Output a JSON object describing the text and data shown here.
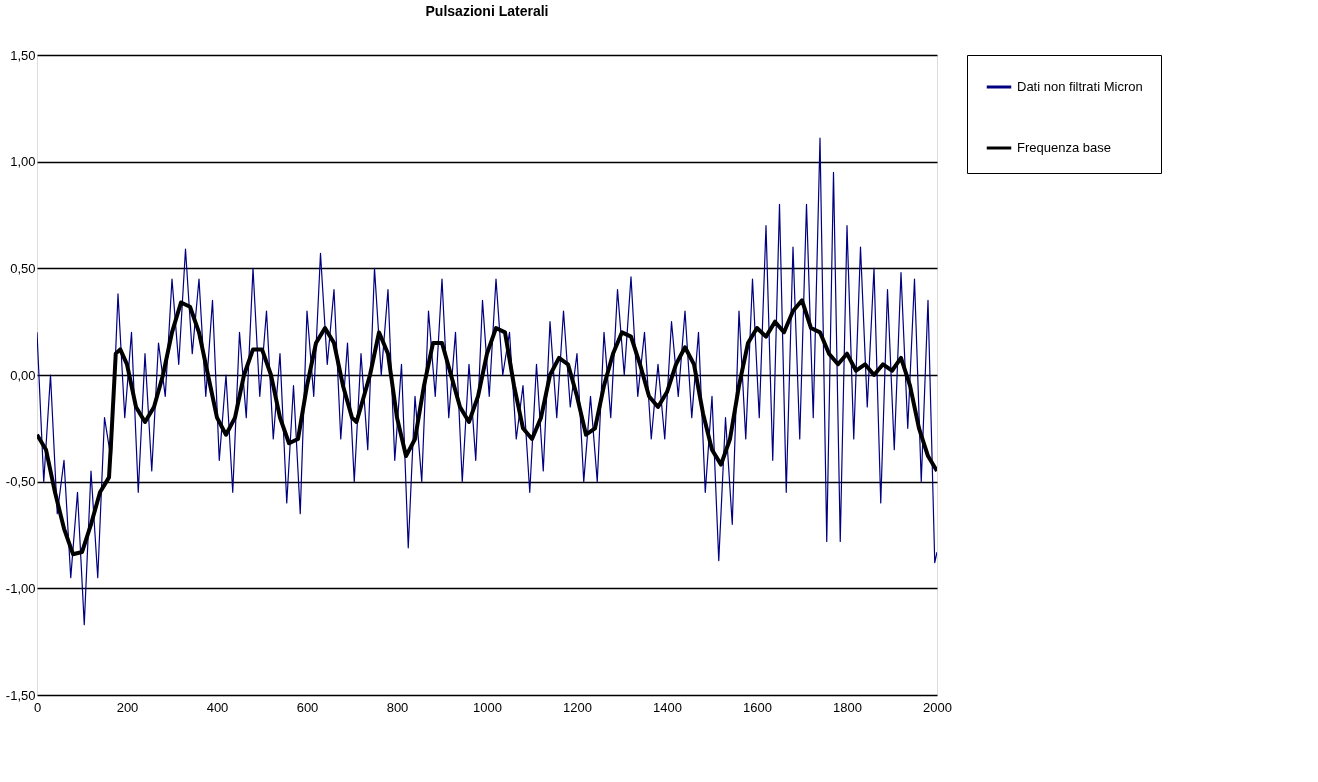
{
  "chart_data": {
    "type": "line",
    "title": "Pulsazioni Laterali",
    "xlim": [
      0,
      2000
    ],
    "xticks": [
      0,
      200,
      400,
      600,
      800,
      1000,
      1200,
      1400,
      1600,
      1800,
      2000
    ],
    "ylim": [
      -1.5,
      1.5
    ],
    "yticks": [
      {
        "value": -1.5,
        "label": "-1,50"
      },
      {
        "value": -1.0,
        "label": "-1,00"
      },
      {
        "value": -0.5,
        "label": "-0,50"
      },
      {
        "value": 0,
        "label": "0,00"
      },
      {
        "value": 0.5,
        "label": "0,50"
      },
      {
        "value": 1.0,
        "label": "1,00"
      },
      {
        "value": 1.5,
        "label": "1,50"
      }
    ],
    "grid": "y",
    "legend": "right",
    "marker": "none",
    "line_style": "solid",
    "series": [
      {
        "name": "Dati non filtrati Micron",
        "color": "#000080",
        "x": [
          0,
          15,
          30,
          45,
          60,
          75,
          90,
          105,
          120,
          135,
          150,
          165,
          180,
          195,
          210,
          225,
          240,
          255,
          270,
          285,
          300,
          315,
          330,
          345,
          360,
          375,
          390,
          405,
          420,
          435,
          450,
          465,
          480,
          495,
          510,
          525,
          540,
          555,
          570,
          585,
          600,
          615,
          630,
          645,
          660,
          675,
          690,
          705,
          720,
          735,
          750,
          765,
          780,
          795,
          810,
          825,
          840,
          855,
          870,
          885,
          900,
          915,
          930,
          945,
          960,
          975,
          990,
          1005,
          1020,
          1035,
          1050,
          1065,
          1080,
          1095,
          1110,
          1125,
          1140,
          1155,
          1170,
          1185,
          1200,
          1215,
          1230,
          1245,
          1260,
          1275,
          1290,
          1305,
          1320,
          1335,
          1350,
          1365,
          1380,
          1395,
          1410,
          1425,
          1440,
          1455,
          1470,
          1485,
          1500,
          1515,
          1530,
          1545,
          1560,
          1575,
          1590,
          1605,
          1620,
          1635,
          1650,
          1665,
          1680,
          1695,
          1710,
          1725,
          1740,
          1755,
          1770,
          1785,
          1800,
          1815,
          1830,
          1845,
          1860,
          1875,
          1890,
          1905,
          1920,
          1935,
          1950,
          1965,
          1980,
          1995,
          2000
        ],
        "values": [
          0.2,
          -0.5,
          0.0,
          -0.65,
          -0.4,
          -0.95,
          -0.55,
          -1.17,
          -0.45,
          -0.95,
          -0.2,
          -0.4,
          0.38,
          -0.2,
          0.2,
          -0.55,
          0.1,
          -0.45,
          0.15,
          -0.1,
          0.45,
          0.05,
          0.59,
          0.1,
          0.45,
          -0.1,
          0.35,
          -0.4,
          0.0,
          -0.55,
          0.2,
          -0.2,
          0.5,
          -0.1,
          0.3,
          -0.3,
          0.1,
          -0.6,
          -0.05,
          -0.65,
          0.3,
          -0.1,
          0.57,
          0.05,
          0.4,
          -0.3,
          0.15,
          -0.5,
          0.1,
          -0.35,
          0.5,
          0.0,
          0.4,
          -0.4,
          0.05,
          -0.81,
          -0.1,
          -0.5,
          0.3,
          -0.1,
          0.45,
          -0.2,
          0.2,
          -0.5,
          0.05,
          -0.4,
          0.35,
          -0.1,
          0.45,
          0.0,
          0.2,
          -0.3,
          -0.05,
          -0.55,
          0.05,
          -0.45,
          0.25,
          -0.2,
          0.3,
          -0.15,
          0.1,
          -0.5,
          -0.1,
          -0.5,
          0.2,
          -0.2,
          0.4,
          0.0,
          0.46,
          -0.1,
          0.2,
          -0.3,
          0.05,
          -0.3,
          0.25,
          -0.1,
          0.3,
          -0.2,
          0.2,
          -0.55,
          -0.1,
          -0.87,
          -0.2,
          -0.7,
          0.3,
          -0.3,
          0.45,
          -0.2,
          0.7,
          -0.4,
          0.8,
          -0.55,
          0.6,
          -0.3,
          0.8,
          -0.2,
          1.11,
          -0.78,
          0.95,
          -0.78,
          0.7,
          -0.3,
          0.6,
          -0.15,
          0.5,
          -0.6,
          0.4,
          -0.35,
          0.48,
          -0.25,
          0.45,
          -0.5,
          0.35,
          -0.88,
          -0.83
        ]
      },
      {
        "name": "Frequenza base",
        "color": "#000000",
        "x": [
          0,
          20,
          40,
          60,
          80,
          100,
          120,
          140,
          160,
          165,
          175,
          185,
          200,
          220,
          240,
          260,
          280,
          300,
          320,
          340,
          360,
          380,
          400,
          420,
          440,
          460,
          480,
          500,
          520,
          540,
          560,
          580,
          600,
          620,
          640,
          660,
          680,
          700,
          710,
          740,
          760,
          780,
          800,
          820,
          840,
          860,
          880,
          900,
          920,
          940,
          960,
          980,
          1000,
          1020,
          1040,
          1060,
          1080,
          1100,
          1120,
          1140,
          1160,
          1180,
          1200,
          1220,
          1240,
          1260,
          1280,
          1300,
          1320,
          1340,
          1360,
          1380,
          1400,
          1420,
          1440,
          1460,
          1480,
          1500,
          1520,
          1540,
          1560,
          1580,
          1600,
          1620,
          1640,
          1660,
          1680,
          1700,
          1720,
          1740,
          1760,
          1780,
          1800,
          1820,
          1840,
          1860,
          1880,
          1900,
          1920,
          1940,
          1960,
          1980,
          2000
        ],
        "values": [
          -0.28,
          -0.35,
          -0.55,
          -0.72,
          -0.84,
          -0.83,
          -0.7,
          -0.55,
          -0.48,
          -0.3,
          0.1,
          0.12,
          0.05,
          -0.15,
          -0.22,
          -0.15,
          0.0,
          0.2,
          0.34,
          0.32,
          0.2,
          0.0,
          -0.2,
          -0.28,
          -0.2,
          0.0,
          0.12,
          0.12,
          0.0,
          -0.2,
          -0.32,
          -0.3,
          -0.05,
          0.15,
          0.22,
          0.15,
          -0.05,
          -0.2,
          -0.22,
          0.0,
          0.2,
          0.1,
          -0.2,
          -0.38,
          -0.3,
          -0.05,
          0.15,
          0.15,
          0.0,
          -0.15,
          -0.22,
          -0.1,
          0.1,
          0.22,
          0.2,
          -0.05,
          -0.25,
          -0.3,
          -0.2,
          0.0,
          0.08,
          0.05,
          -0.1,
          -0.28,
          -0.25,
          -0.05,
          0.1,
          0.2,
          0.18,
          0.05,
          -0.1,
          -0.15,
          -0.08,
          0.05,
          0.13,
          0.05,
          -0.18,
          -0.35,
          -0.42,
          -0.3,
          -0.05,
          0.15,
          0.22,
          0.18,
          0.25,
          0.2,
          0.3,
          0.35,
          0.22,
          0.2,
          0.1,
          0.05,
          0.1,
          0.02,
          0.05,
          0.0,
          0.05,
          0.02,
          0.08,
          -0.05,
          -0.25,
          -0.38,
          -0.45
        ]
      }
    ]
  }
}
